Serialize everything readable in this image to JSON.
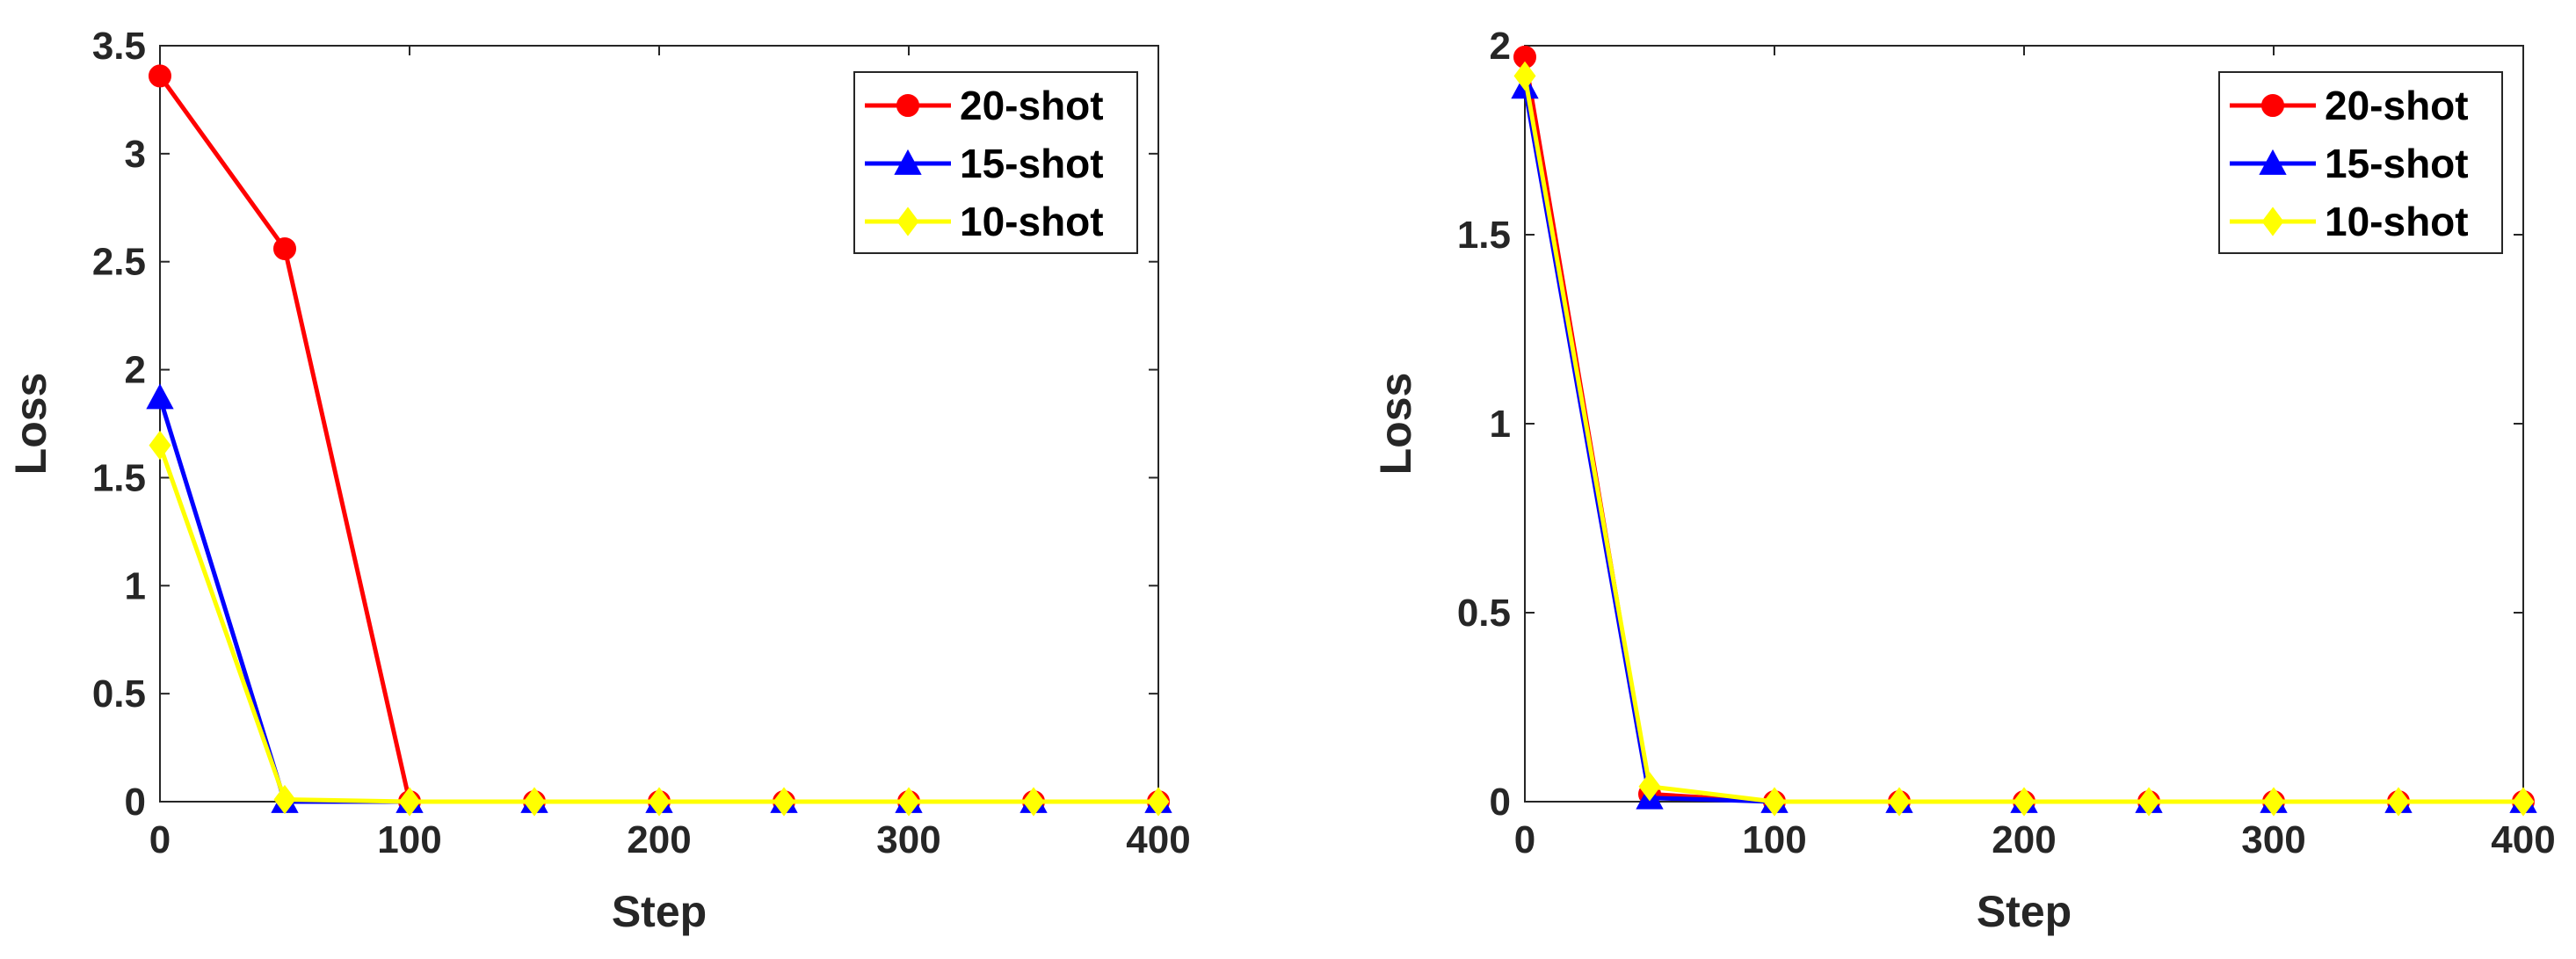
{
  "chart_data": [
    {
      "type": "line",
      "xlabel": "Step",
      "ylabel": "Loss",
      "xlim": [
        0,
        400
      ],
      "ylim": [
        0,
        3.5
      ],
      "xticks": [
        0,
        100,
        200,
        300,
        400
      ],
      "xtick_labels": [
        "0",
        "100",
        "200",
        "300",
        "400"
      ],
      "yticks": [
        0,
        0.5,
        1,
        1.5,
        2,
        2.5,
        3,
        3.5
      ],
      "ytick_labels": [
        "0",
        "0.5",
        "1",
        "1.5",
        "2",
        "2.5",
        "3",
        "3.5"
      ],
      "legend_position": "top-right",
      "grid": false,
      "x": [
        0,
        50,
        100,
        150,
        200,
        250,
        300,
        350,
        400
      ],
      "series": [
        {
          "name": "20-shot",
          "color": "#ff0000",
          "marker": "circle",
          "values": [
            3.36,
            2.56,
            0,
            0,
            0,
            0,
            0,
            0,
            0
          ]
        },
        {
          "name": "15-shot",
          "color": "#0000ff",
          "marker": "triangle",
          "values": [
            1.87,
            0,
            0,
            0,
            0,
            0,
            0,
            0,
            0
          ]
        },
        {
          "name": "10-shot",
          "color": "#ffff00",
          "marker": "diamond",
          "values": [
            1.65,
            0.01,
            0,
            0,
            0,
            0,
            0,
            0,
            0
          ]
        }
      ]
    },
    {
      "type": "line",
      "xlabel": "Step",
      "ylabel": "Loss",
      "xlim": [
        0,
        400
      ],
      "ylim": [
        0,
        2
      ],
      "xticks": [
        0,
        100,
        200,
        300,
        400
      ],
      "xtick_labels": [
        "0",
        "100",
        "200",
        "300",
        "400"
      ],
      "yticks": [
        0,
        0.5,
        1,
        1.5,
        2
      ],
      "ytick_labels": [
        "0",
        "0.5",
        "1",
        "1.5",
        "2"
      ],
      "legend_position": "top-right",
      "grid": false,
      "x": [
        0,
        50,
        100,
        150,
        200,
        250,
        300,
        350,
        400
      ],
      "series": [
        {
          "name": "20-shot",
          "color": "#ff0000",
          "marker": "circle",
          "values": [
            1.97,
            0.02,
            0,
            0,
            0,
            0,
            0,
            0,
            0
          ]
        },
        {
          "name": "15-shot",
          "color": "#0000ff",
          "marker": "triangle",
          "values": [
            1.89,
            0.01,
            0,
            0,
            0,
            0,
            0,
            0,
            0
          ]
        },
        {
          "name": "10-shot",
          "color": "#ffff00",
          "marker": "diamond",
          "values": [
            1.92,
            0.04,
            0,
            0,
            0,
            0,
            0,
            0,
            0
          ]
        }
      ]
    }
  ]
}
